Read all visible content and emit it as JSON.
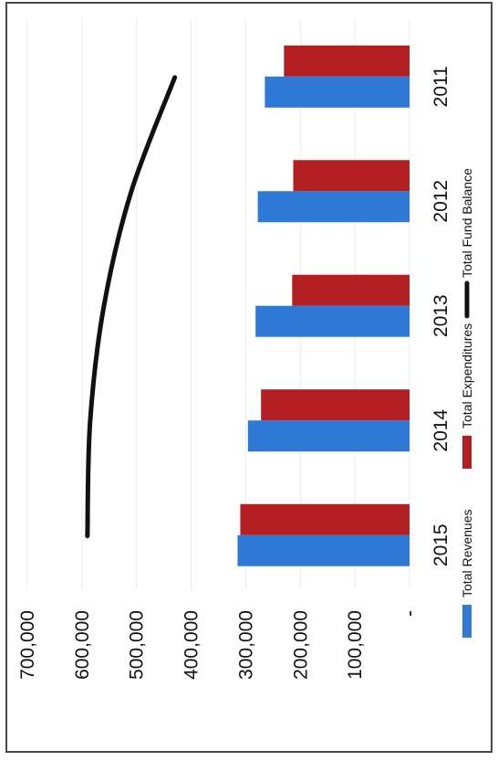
{
  "chart_data": {
    "type": "bar",
    "orientation": "rotated-90",
    "categories": [
      "2011",
      "2012",
      "2013",
      "2014",
      "2015"
    ],
    "series": [
      {
        "name": "Total Revenues",
        "kind": "bar",
        "color": "#2e78d6",
        "values": [
          265000,
          278000,
          282000,
          296000,
          315000
        ]
      },
      {
        "name": "Total Expenditures",
        "kind": "bar",
        "color": "#b21e22",
        "values": [
          230000,
          213000,
          215000,
          272000,
          310000
        ]
      },
      {
        "name": "Total Fund Balance",
        "kind": "line",
        "color": "#111111",
        "values": [
          430000,
          510000,
          560000,
          585000,
          590000
        ]
      }
    ],
    "ylim": [
      0,
      700000
    ],
    "yticks": [
      "-",
      "100,000",
      "200,000",
      "300,000",
      "400,000",
      "500,000",
      "600,000",
      "700,000"
    ],
    "grid": true,
    "legend_position": "bottom"
  }
}
